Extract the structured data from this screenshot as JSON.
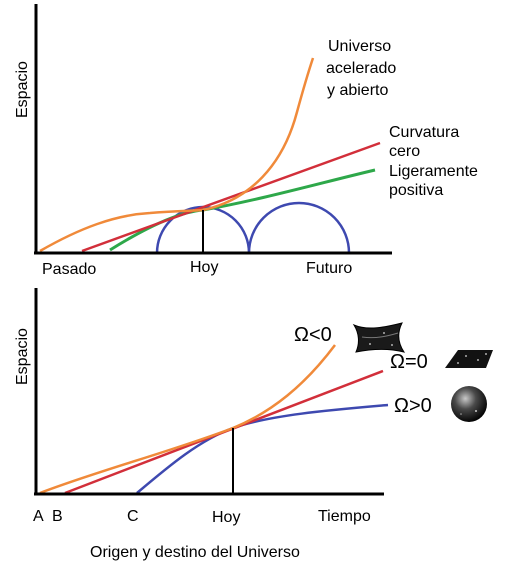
{
  "top_panel": {
    "y_axis_label": "Espacio",
    "x_labels": {
      "past": "Pasado",
      "today": "Hoy",
      "future": "Futuro"
    },
    "curves": [
      {
        "id": "accelerated",
        "lines": [
          "Universo",
          "acelerado",
          "y abierto"
        ],
        "color": "#f08a3a"
      },
      {
        "id": "zero-curvature",
        "lines": [
          "Curvatura",
          "cero"
        ],
        "color": "#d22f3a"
      },
      {
        "id": "slightly-positive",
        "lines": [
          "Ligeramente",
          "positiva"
        ],
        "color": "#2ea84a"
      },
      {
        "id": "cyclic",
        "lines": [],
        "color": "#3e49b0"
      }
    ]
  },
  "bottom_panel": {
    "y_axis_label": "Espacio",
    "x_labels": {
      "a": "A",
      "b": "B",
      "c": "C",
      "today": "Hoy",
      "time": "Tiempo"
    },
    "curves": [
      {
        "id": "omega-lt",
        "label": "Ω<0",
        "color": "#f08a3a",
        "icon": "saddle-icon"
      },
      {
        "id": "omega-eq",
        "label": "Ω=0",
        "color": "#d22f3a",
        "icon": "flat-sheet-icon"
      },
      {
        "id": "omega-gt",
        "label": "Ω>0",
        "color": "#3e49b0",
        "icon": "sphere-icon"
      }
    ]
  },
  "caption": "Origen y destino del Universo"
}
